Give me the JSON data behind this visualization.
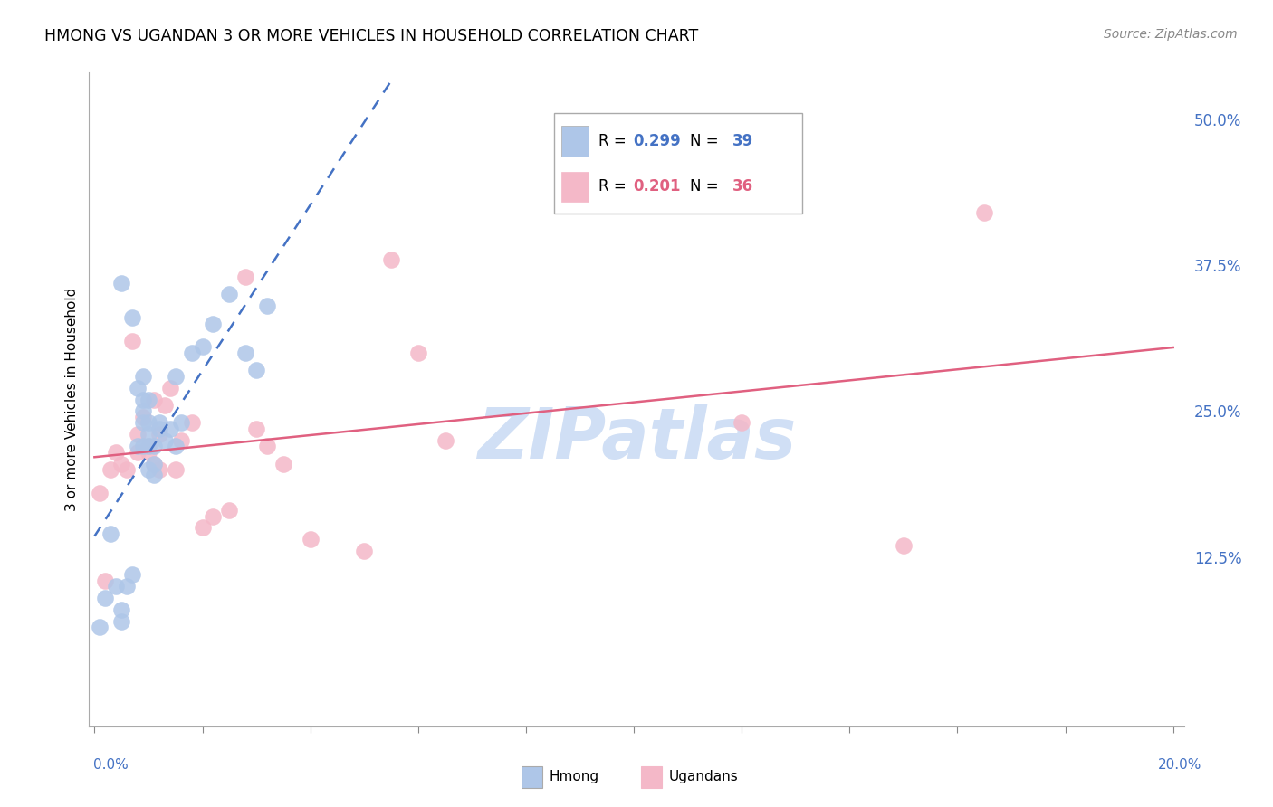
{
  "title": "HMONG VS UGANDAN 3 OR MORE VEHICLES IN HOUSEHOLD CORRELATION CHART",
  "source": "Source: ZipAtlas.com",
  "ylabel": "3 or more Vehicles in Household",
  "ytick_labels": [
    "12.5%",
    "25.0%",
    "37.5%",
    "50.0%"
  ],
  "ytick_values": [
    0.125,
    0.25,
    0.375,
    0.5
  ],
  "xlim": [
    -0.001,
    0.202
  ],
  "ylim": [
    -0.02,
    0.54
  ],
  "legend_color1": "#aec6e8",
  "legend_color2": "#f4b8c8",
  "scatter_color_hmong": "#aec6e8",
  "scatter_color_ugandan": "#f4b8c8",
  "trend_color_hmong": "#4472c4",
  "trend_color_ugandan": "#e06080",
  "watermark": "ZIPatlas",
  "watermark_color": "#d0dff5",
  "hmong_x": [
    0.001,
    0.002,
    0.003,
    0.004,
    0.005,
    0.005,
    0.005,
    0.006,
    0.007,
    0.007,
    0.008,
    0.008,
    0.009,
    0.009,
    0.009,
    0.009,
    0.009,
    0.01,
    0.01,
    0.01,
    0.01,
    0.01,
    0.011,
    0.011,
    0.011,
    0.012,
    0.012,
    0.013,
    0.014,
    0.015,
    0.015,
    0.016,
    0.018,
    0.02,
    0.022,
    0.025,
    0.028,
    0.03,
    0.032
  ],
  "hmong_y": [
    0.065,
    0.09,
    0.145,
    0.1,
    0.07,
    0.08,
    0.36,
    0.1,
    0.11,
    0.33,
    0.22,
    0.27,
    0.22,
    0.24,
    0.25,
    0.26,
    0.28,
    0.2,
    0.22,
    0.23,
    0.24,
    0.26,
    0.195,
    0.205,
    0.22,
    0.235,
    0.24,
    0.225,
    0.235,
    0.28,
    0.22,
    0.24,
    0.3,
    0.305,
    0.325,
    0.35,
    0.3,
    0.285,
    0.34
  ],
  "ugandan_x": [
    0.001,
    0.002,
    0.003,
    0.004,
    0.005,
    0.006,
    0.007,
    0.008,
    0.008,
    0.009,
    0.01,
    0.01,
    0.011,
    0.011,
    0.012,
    0.012,
    0.013,
    0.014,
    0.015,
    0.016,
    0.018,
    0.02,
    0.022,
    0.025,
    0.028,
    0.03,
    0.032,
    0.035,
    0.04,
    0.05,
    0.055,
    0.06,
    0.065,
    0.12,
    0.15,
    0.165
  ],
  "ugandan_y": [
    0.18,
    0.105,
    0.2,
    0.215,
    0.205,
    0.2,
    0.31,
    0.215,
    0.23,
    0.245,
    0.215,
    0.22,
    0.205,
    0.26,
    0.2,
    0.23,
    0.255,
    0.27,
    0.2,
    0.225,
    0.24,
    0.15,
    0.16,
    0.165,
    0.365,
    0.235,
    0.22,
    0.205,
    0.14,
    0.13,
    0.38,
    0.3,
    0.225,
    0.24,
    0.135,
    0.42
  ]
}
